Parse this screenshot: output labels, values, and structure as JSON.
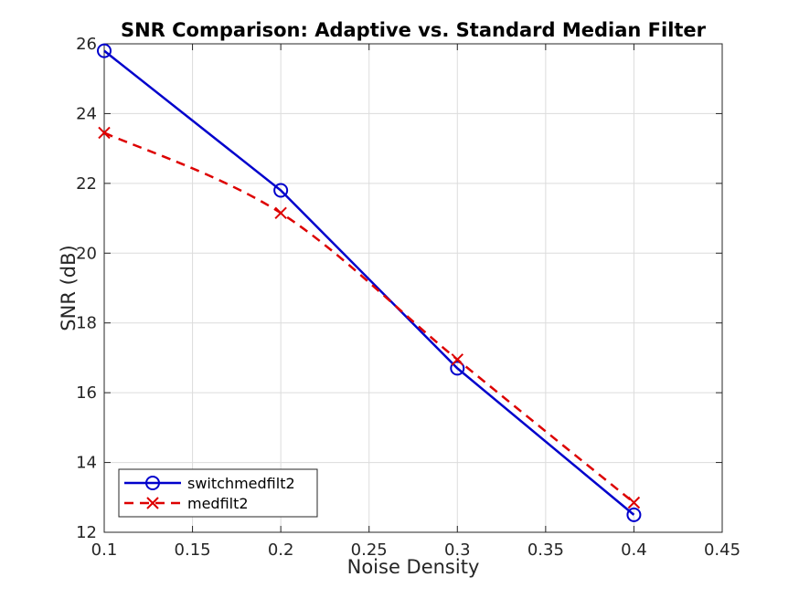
{
  "chart_data": {
    "type": "line",
    "title": "SNR Comparison: Adaptive vs. Standard Median Filter",
    "xlabel": "Noise Density",
    "ylabel": "SNR (dB)",
    "xlim": [
      0.1,
      0.45
    ],
    "ylim": [
      12,
      26
    ],
    "xticks": [
      0.1,
      0.15,
      0.2,
      0.25,
      0.3,
      0.35,
      0.4,
      0.45
    ],
    "xtick_labels": [
      "0.1",
      "0.15",
      "0.2",
      "0.25",
      "0.3",
      "0.35",
      "0.4",
      "0.45"
    ],
    "yticks": [
      12,
      14,
      16,
      18,
      20,
      22,
      24,
      26
    ],
    "ytick_labels": [
      "12",
      "14",
      "16",
      "18",
      "20",
      "22",
      "24",
      "26"
    ],
    "grid": true,
    "legend_position": "bottom-left",
    "series": [
      {
        "name": "switchmedfilt2",
        "x": [
          0.1,
          0.2,
          0.3,
          0.4
        ],
        "y": [
          25.8,
          21.8,
          16.7,
          12.5
        ],
        "color": "#0000cc",
        "line_style": "solid",
        "marker": "circle"
      },
      {
        "name": "medfilt2",
        "x": [
          0.1,
          0.2,
          0.3,
          0.4
        ],
        "y": [
          23.45,
          21.15,
          16.95,
          12.85
        ],
        "color": "#dd0000",
        "line_style": "dashed",
        "marker": "x",
        "smooth": true
      }
    ]
  }
}
